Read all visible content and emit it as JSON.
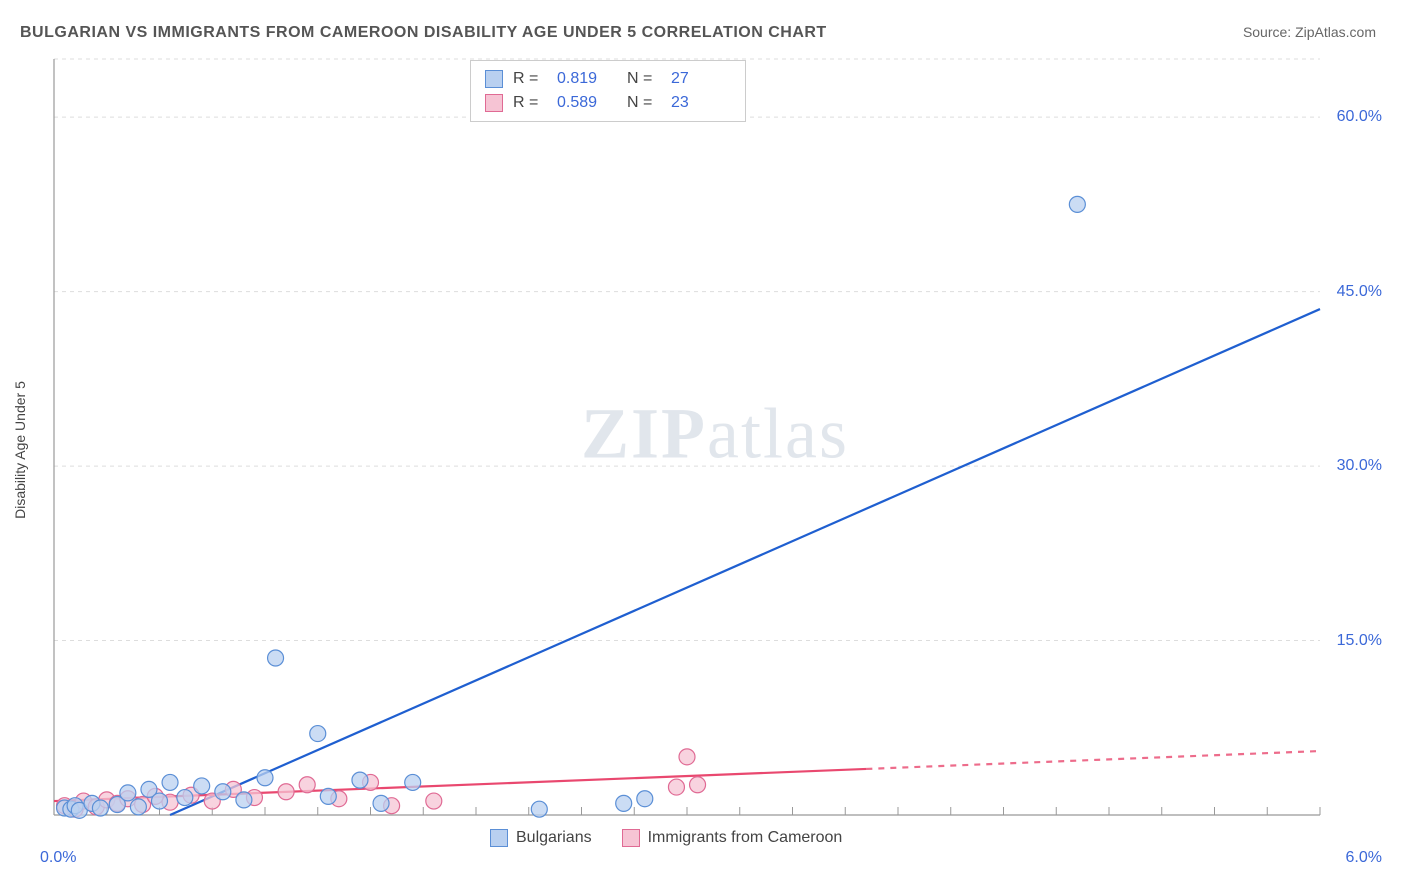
{
  "title": "BULGARIAN VS IMMIGRANTS FROM CAMEROON DISABILITY AGE UNDER 5 CORRELATION CHART",
  "source_label": "Source: ",
  "source_value": "ZipAtlas.com",
  "watermark": "ZIPatlas",
  "chart": {
    "type": "scatter",
    "ylabel": "Disability Age Under 5",
    "background_color": "#ffffff",
    "grid_color": "#dddddd",
    "axis_color": "#999999",
    "xlim": [
      0.0,
      6.0
    ],
    "ylim": [
      0.0,
      65.0
    ],
    "xtick_origin": "0.0%",
    "xtick_end": "6.0%",
    "yticks": [
      {
        "v": 15.0,
        "label": "15.0%"
      },
      {
        "v": 30.0,
        "label": "30.0%"
      },
      {
        "v": 45.0,
        "label": "45.0%"
      },
      {
        "v": 60.0,
        "label": "60.0%"
      }
    ],
    "xtick_minor_step": 0.25,
    "series": [
      {
        "name": "Bulgarians",
        "marker_fill": "#b9d0f0",
        "marker_stroke": "#5b8fd6",
        "marker_opacity": 0.75,
        "marker_radius": 8,
        "line_color": "#1f5fd0",
        "line_width": 2.2,
        "line_from": [
          0.55,
          0.0
        ],
        "line_to": [
          6.0,
          43.5
        ],
        "solid_until_x": 6.0,
        "R": "0.819",
        "N": "27",
        "points": [
          [
            0.05,
            0.6
          ],
          [
            0.08,
            0.5
          ],
          [
            0.1,
            0.8
          ],
          [
            0.12,
            0.4
          ],
          [
            0.18,
            1.0
          ],
          [
            0.22,
            0.6
          ],
          [
            0.3,
            0.9
          ],
          [
            0.35,
            1.9
          ],
          [
            0.4,
            0.7
          ],
          [
            0.45,
            2.2
          ],
          [
            0.5,
            1.2
          ],
          [
            0.55,
            2.8
          ],
          [
            0.62,
            1.5
          ],
          [
            0.7,
            2.5
          ],
          [
            0.8,
            2.0
          ],
          [
            0.9,
            1.3
          ],
          [
            1.0,
            3.2
          ],
          [
            1.05,
            13.5
          ],
          [
            1.25,
            7.0
          ],
          [
            1.3,
            1.6
          ],
          [
            1.45,
            3.0
          ],
          [
            1.55,
            1.0
          ],
          [
            1.7,
            2.8
          ],
          [
            2.3,
            0.5
          ],
          [
            2.7,
            1.0
          ],
          [
            2.8,
            1.4
          ],
          [
            4.85,
            52.5
          ]
        ]
      },
      {
        "name": "Immigrants from Cameroon",
        "marker_fill": "#f6c4d4",
        "marker_stroke": "#e06a94",
        "marker_opacity": 0.75,
        "marker_radius": 8,
        "line_color": "#e9486f",
        "line_width": 2.2,
        "line_from": [
          0.0,
          1.2
        ],
        "line_to": [
          6.0,
          5.5
        ],
        "solid_until_x": 3.85,
        "R": "0.589",
        "N": "23",
        "points": [
          [
            0.05,
            0.8
          ],
          [
            0.1,
            0.5
          ],
          [
            0.14,
            1.2
          ],
          [
            0.2,
            0.7
          ],
          [
            0.25,
            1.3
          ],
          [
            0.3,
            1.0
          ],
          [
            0.35,
            1.4
          ],
          [
            0.42,
            0.9
          ],
          [
            0.48,
            1.6
          ],
          [
            0.55,
            1.1
          ],
          [
            0.65,
            1.7
          ],
          [
            0.75,
            1.2
          ],
          [
            0.85,
            2.2
          ],
          [
            0.95,
            1.5
          ],
          [
            1.1,
            2.0
          ],
          [
            1.2,
            2.6
          ],
          [
            1.35,
            1.4
          ],
          [
            1.5,
            2.8
          ],
          [
            1.6,
            0.8
          ],
          [
            1.8,
            1.2
          ],
          [
            2.95,
            2.4
          ],
          [
            3.0,
            5.0
          ],
          [
            3.05,
            2.6
          ]
        ]
      }
    ],
    "legend_bottom": [
      {
        "swatch_fill": "#b9d0f0",
        "swatch_stroke": "#5b8fd6",
        "label": "Bulgarians"
      },
      {
        "swatch_fill": "#f6c4d4",
        "swatch_stroke": "#e06a94",
        "label": "Immigrants from Cameroon"
      }
    ]
  }
}
